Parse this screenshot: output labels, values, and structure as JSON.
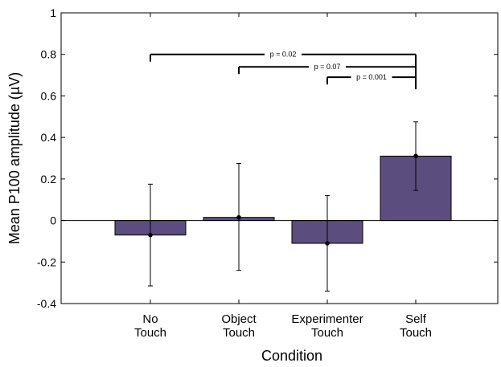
{
  "chart_data": {
    "type": "bar",
    "xlabel": "Condition",
    "ylabel": "Mean P100 amplitude (µV)",
    "ylim": [
      -0.4,
      1
    ],
    "yticks": [
      1,
      0.8,
      0.6,
      0.4,
      0.2,
      0,
      -0.2,
      -0.4
    ],
    "ytick_labels": [
      "1",
      "0.8",
      "0.6",
      "0.4",
      "0.2",
      "0",
      "-0.2",
      "-0.4"
    ],
    "categories": [
      [
        "No",
        "Touch"
      ],
      [
        "Object",
        "Touch"
      ],
      [
        "Experimenter",
        "Touch"
      ],
      [
        "Self",
        "Touch"
      ]
    ],
    "values": [
      -0.07,
      0.015,
      -0.11,
      0.31
    ],
    "error_low": [
      -0.315,
      -0.24,
      -0.34,
      0.145
    ],
    "error_high": [
      0.175,
      0.275,
      0.12,
      0.475
    ],
    "bar_color": "#5b4e7e",
    "comparisons": [
      {
        "from": 0,
        "to": 3,
        "y": 0.8,
        "label": "p = 0.02"
      },
      {
        "from": 1,
        "to": 3,
        "y": 0.74,
        "label": "p = 0.07"
      },
      {
        "from": 2,
        "to": 3,
        "y": 0.69,
        "label": "p = 0.001"
      }
    ],
    "grid": false
  }
}
